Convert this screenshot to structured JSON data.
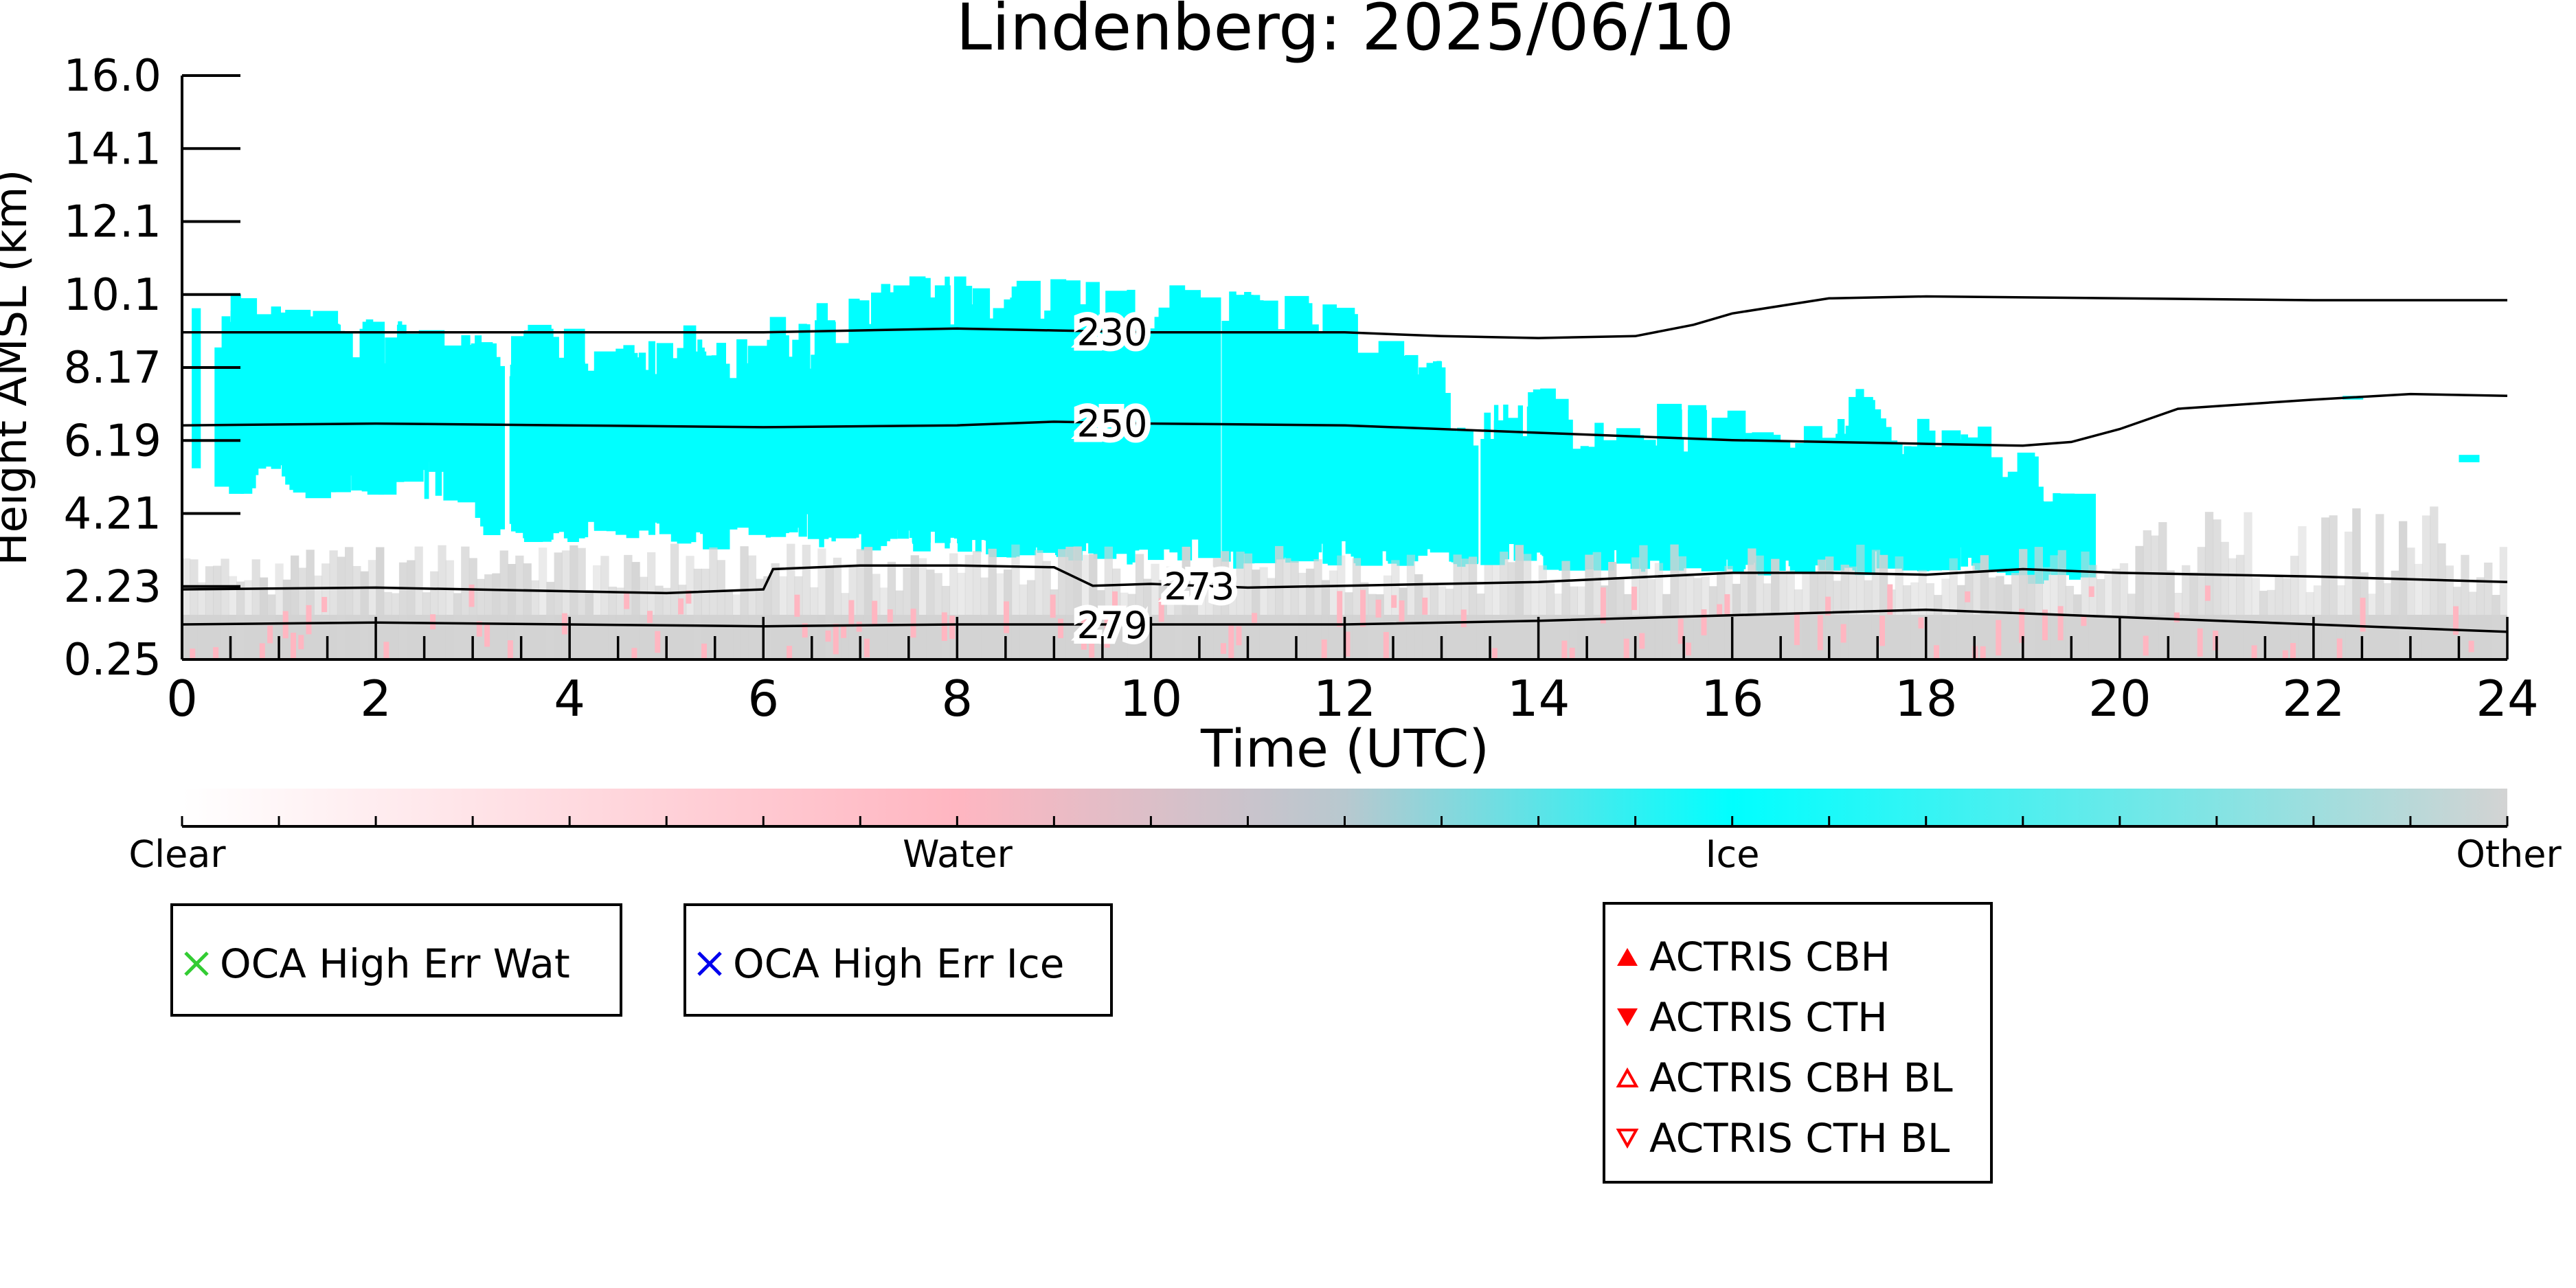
{
  "chart_data": {
    "type": "heatmap",
    "title": "Lindenberg: 2025/06/10",
    "xlabel": "Time (UTC)",
    "ylabel": "Height AMSL (km)",
    "xlim": [
      0,
      24
    ],
    "x_ticks": [
      "0",
      "2",
      "4",
      "6",
      "8",
      "10",
      "12",
      "14",
      "16",
      "18",
      "20",
      "22",
      "24"
    ],
    "y_ticks": [
      "0.25",
      "2.23",
      "4.21",
      "6.19",
      "8.17",
      "10.1",
      "12.1",
      "14.1",
      "16.0"
    ],
    "ylim": [
      0.25,
      16.0
    ],
    "colorbar": {
      "labels": [
        "Clear",
        "Water",
        "Ice",
        "Other"
      ],
      "colors": [
        "#ffffff",
        "#ffb6c1",
        "#00ffff",
        "#d3d3d3"
      ]
    },
    "contours": [
      {
        "label": "230",
        "label_x": 9.6,
        "points": [
          [
            0,
            9.1
          ],
          [
            2,
            9.1
          ],
          [
            4,
            9.1
          ],
          [
            6,
            9.1
          ],
          [
            7,
            9.15
          ],
          [
            8,
            9.2
          ],
          [
            9,
            9.15
          ],
          [
            10,
            9.1
          ],
          [
            12,
            9.1
          ],
          [
            13,
            9.0
          ],
          [
            14,
            8.95
          ],
          [
            15,
            9.0
          ],
          [
            15.6,
            9.3
          ],
          [
            16,
            9.6
          ],
          [
            17,
            10.0
          ],
          [
            18,
            10.05
          ],
          [
            20,
            10.0
          ],
          [
            22,
            9.95
          ],
          [
            24,
            9.95
          ]
        ]
      },
      {
        "label": "250",
        "label_x": 9.6,
        "points": [
          [
            0,
            6.6
          ],
          [
            2,
            6.65
          ],
          [
            4,
            6.6
          ],
          [
            6,
            6.55
          ],
          [
            8,
            6.6
          ],
          [
            9,
            6.7
          ],
          [
            10,
            6.65
          ],
          [
            12,
            6.6
          ],
          [
            14,
            6.4
          ],
          [
            16,
            6.2
          ],
          [
            18,
            6.1
          ],
          [
            19,
            6.05
          ],
          [
            19.5,
            6.15
          ],
          [
            20,
            6.5
          ],
          [
            20.6,
            7.05
          ],
          [
            22,
            7.3
          ],
          [
            23,
            7.45
          ],
          [
            24,
            7.4
          ]
        ]
      },
      {
        "label": "273",
        "label_x": 10.5,
        "points": [
          [
            0,
            2.15
          ],
          [
            2,
            2.2
          ],
          [
            4,
            2.1
          ],
          [
            5,
            2.05
          ],
          [
            6,
            2.15
          ],
          [
            6.1,
            2.7
          ],
          [
            7,
            2.8
          ],
          [
            8,
            2.8
          ],
          [
            9,
            2.75
          ],
          [
            9.4,
            2.25
          ],
          [
            10,
            2.3
          ],
          [
            11,
            2.2
          ],
          [
            12,
            2.25
          ],
          [
            13,
            2.3
          ],
          [
            14,
            2.35
          ],
          [
            16,
            2.6
          ],
          [
            17,
            2.6
          ],
          [
            18,
            2.55
          ],
          [
            19,
            2.7
          ],
          [
            20,
            2.6
          ],
          [
            22,
            2.5
          ],
          [
            24,
            2.35
          ]
        ]
      },
      {
        "label": "279",
        "label_x": 9.6,
        "points": [
          [
            0,
            1.2
          ],
          [
            2,
            1.25
          ],
          [
            4,
            1.2
          ],
          [
            6,
            1.15
          ],
          [
            8,
            1.2
          ],
          [
            9,
            1.2
          ],
          [
            10,
            1.2
          ],
          [
            12,
            1.2
          ],
          [
            14,
            1.3
          ],
          [
            16,
            1.45
          ],
          [
            18,
            1.6
          ],
          [
            19,
            1.5
          ],
          [
            20,
            1.4
          ],
          [
            22,
            1.2
          ],
          [
            24,
            1.0
          ]
        ]
      }
    ],
    "legend_boxes": [
      {
        "entries": [
          {
            "marker": "x",
            "color": "#33cc33",
            "label": "OCA High Err Wat"
          }
        ]
      },
      {
        "entries": [
          {
            "marker": "x",
            "color": "#0000ee",
            "label": "OCA High Err Ice"
          }
        ]
      },
      {
        "entries": [
          {
            "marker": "triangle-up",
            "color": "#ff0000",
            "filled": true,
            "label": "ACTRIS CBH"
          },
          {
            "marker": "triangle-down",
            "color": "#ff0000",
            "filled": true,
            "label": "ACTRIS CTH"
          },
          {
            "marker": "triangle-up",
            "color": "#ff0000",
            "filled": false,
            "label": "ACTRIS CBH BL"
          },
          {
            "marker": "triangle-down",
            "color": "#ff0000",
            "filled": false,
            "label": "ACTRIS CTH BL"
          }
        ]
      }
    ]
  }
}
